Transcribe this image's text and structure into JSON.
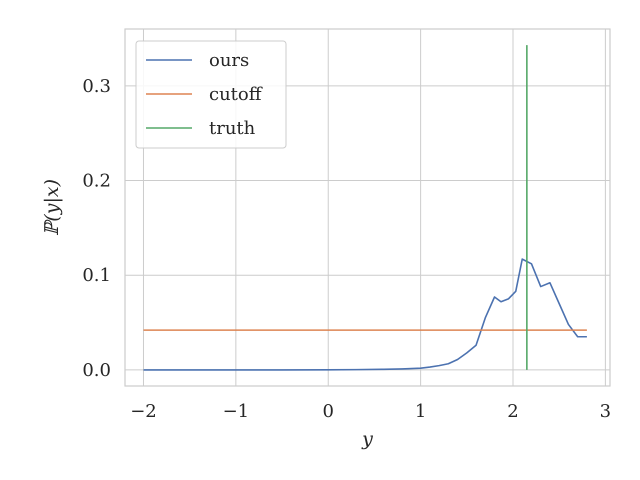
{
  "chart_data": {
    "type": "line",
    "title": "",
    "xlabel": "y",
    "ylabel": "ℙ(y|x)",
    "xlim": [
      -2.2,
      3.05
    ],
    "ylim": [
      -0.017,
      0.36
    ],
    "xticks": [
      -2,
      -1,
      0,
      1,
      2,
      3
    ],
    "xtick_labels": [
      "−2",
      "−1",
      "0",
      "1",
      "2",
      "3"
    ],
    "yticks": [
      0.0,
      0.1,
      0.2,
      0.3
    ],
    "ytick_labels": [
      "0.0",
      "0.1",
      "0.2",
      "0.3"
    ],
    "grid": true,
    "legend_position": "top-left",
    "colors": {
      "ours": "#4c72b0",
      "cutoff": "#dd8452",
      "truth": "#55a868"
    },
    "series": [
      {
        "name": "ours",
        "x": [
          -2.0,
          -1.5,
          -1.0,
          -0.5,
          0.0,
          0.3,
          0.6,
          0.8,
          1.0,
          1.1,
          1.2,
          1.3,
          1.4,
          1.5,
          1.6,
          1.7,
          1.8,
          1.87,
          1.95,
          2.03,
          2.1,
          2.2,
          2.3,
          2.4,
          2.5,
          2.6,
          2.7,
          2.8
        ],
        "y": [
          0.0,
          0.0,
          0.0,
          0.0,
          0.0001,
          0.0003,
          0.0006,
          0.001,
          0.0018,
          0.003,
          0.0045,
          0.0065,
          0.011,
          0.018,
          0.026,
          0.055,
          0.077,
          0.072,
          0.075,
          0.083,
          0.117,
          0.112,
          0.088,
          0.092,
          0.07,
          0.048,
          0.035,
          0.035
        ]
      },
      {
        "name": "cutoff",
        "x": [
          -2.0,
          2.8
        ],
        "y": [
          0.042,
          0.042
        ]
      },
      {
        "name": "truth",
        "x": [
          2.15,
          2.15
        ],
        "y": [
          0.0,
          0.343
        ]
      }
    ]
  }
}
